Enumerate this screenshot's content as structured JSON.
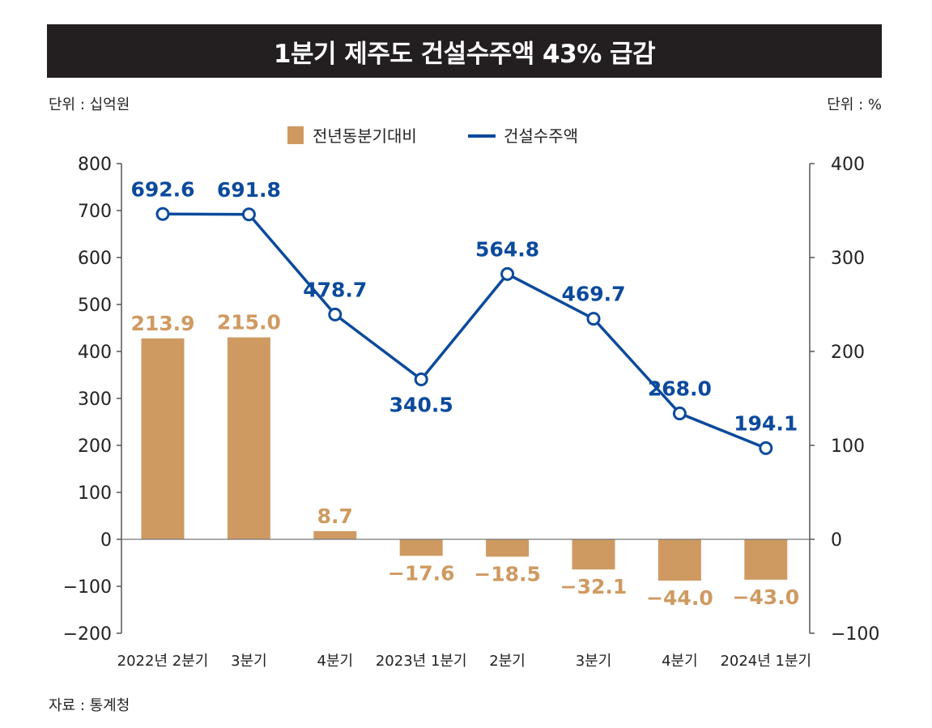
{
  "title": "1분기 제주도 건설수주액 43% 급감",
  "unit_left": "단위 : 십억원",
  "unit_right": "단위 : %",
  "source": "자료 : 통계청",
  "colors": {
    "bar": "#cf9a61",
    "line": "#0b4a9c",
    "title_bg": "#231f20",
    "axis": "#555555"
  },
  "chart_data": {
    "type": "bar",
    "categories": [
      "2022년 2분기",
      "3분기",
      "4분기",
      "2023년 1분기",
      "2분기",
      "3분기",
      "4분기",
      "2024년 1분기"
    ],
    "series": [
      {
        "name": "전년동분기대비",
        "type": "bar",
        "axis": "right",
        "values": [
          213.9,
          215.0,
          8.7,
          -17.6,
          -18.5,
          -32.1,
          -44.0,
          -43.0
        ],
        "labels": [
          "213.9",
          "215.0",
          "8.7",
          "−17.6",
          "−18.5",
          "−32.1",
          "−44.0",
          "−43.0"
        ]
      },
      {
        "name": "건설수주액",
        "type": "line",
        "axis": "left",
        "values": [
          692.6,
          691.8,
          478.7,
          340.5,
          564.8,
          469.7,
          268.0,
          194.1
        ],
        "labels": [
          "692.6",
          "691.8",
          "478.7",
          "340.5",
          "564.8",
          "469.7",
          "268.0",
          "194.1"
        ]
      }
    ],
    "y_left": {
      "min": -200,
      "max": 800,
      "ticks": [
        800,
        700,
        600,
        500,
        400,
        300,
        200,
        100,
        0,
        -100,
        -200
      ],
      "tick_labels": [
        "800",
        "700",
        "600",
        "500",
        "400",
        "300",
        "200",
        "100",
        "0",
        "−100",
        "−200"
      ]
    },
    "y_right": {
      "min": -100,
      "max": 400,
      "ticks": [
        400,
        300,
        200,
        100,
        0,
        -100
      ],
      "tick_labels": [
        "400",
        "300",
        "200",
        "100",
        "0",
        "−100"
      ]
    },
    "legend_position": "top-center",
    "grid": false
  }
}
